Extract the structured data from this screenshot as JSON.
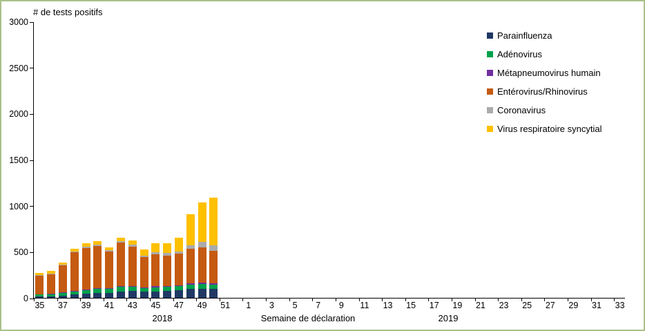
{
  "frame": {
    "border_color": "#a9c189",
    "background": "#ffffff"
  },
  "chart_data": {
    "type": "bar",
    "stacked": true,
    "title": "# de tests positifs",
    "xlabel": "Semaine de déclaration",
    "ylabel": "",
    "ylim": [
      0,
      3000
    ],
    "ytick_step": 500,
    "grid": false,
    "legend_position": "top-right",
    "year_groups": [
      {
        "label": "2018",
        "week_start": 35,
        "week_end": 52
      },
      {
        "label": "2019",
        "week_start": 1,
        "week_end": 33
      }
    ],
    "categories": [
      35,
      36,
      37,
      38,
      39,
      40,
      41,
      42,
      43,
      44,
      45,
      46,
      47,
      48,
      49,
      50,
      51,
      52,
      1,
      2,
      3,
      4,
      5,
      6,
      7,
      8,
      9,
      10,
      11,
      12,
      13,
      14,
      15,
      16,
      17,
      18,
      19,
      20,
      21,
      22,
      23,
      24,
      25,
      26,
      27,
      28,
      29,
      30,
      31,
      32,
      33
    ],
    "x_tick_label_interval": 2,
    "series": [
      {
        "name": "Parainfluenza",
        "color": "#1f3864",
        "values": [
          15,
          18,
          25,
          35,
          45,
          55,
          55,
          70,
          75,
          65,
          70,
          75,
          80,
          95,
          100,
          95,
          0,
          0,
          0,
          0,
          0,
          0,
          0,
          0,
          0,
          0,
          0,
          0,
          0,
          0,
          0,
          0,
          0,
          0,
          0,
          0,
          0,
          0,
          0,
          0,
          0,
          0,
          0,
          0,
          0,
          0,
          0,
          0,
          0,
          0,
          0
        ]
      },
      {
        "name": "Adénovirus",
        "color": "#00a14b",
        "values": [
          20,
          22,
          30,
          35,
          40,
          45,
          40,
          50,
          45,
          40,
          45,
          45,
          45,
          50,
          50,
          45,
          0,
          0,
          0,
          0,
          0,
          0,
          0,
          0,
          0,
          0,
          0,
          0,
          0,
          0,
          0,
          0,
          0,
          0,
          0,
          0,
          0,
          0,
          0,
          0,
          0,
          0,
          0,
          0,
          0,
          0,
          0,
          0,
          0,
          0,
          0
        ]
      },
      {
        "name": "Métapneumovirus humain",
        "color": "#7030a0",
        "values": [
          3,
          3,
          4,
          5,
          6,
          6,
          7,
          8,
          8,
          8,
          10,
          10,
          12,
          15,
          18,
          20,
          0,
          0,
          0,
          0,
          0,
          0,
          0,
          0,
          0,
          0,
          0,
          0,
          0,
          0,
          0,
          0,
          0,
          0,
          0,
          0,
          0,
          0,
          0,
          0,
          0,
          0,
          0,
          0,
          0,
          0,
          0,
          0,
          0,
          0,
          0
        ]
      },
      {
        "name": "Entérovirus/Rhinovirus",
        "color": "#c55a11",
        "values": [
          200,
          215,
          290,
          420,
          450,
          460,
          400,
          470,
          430,
          330,
          350,
          330,
          340,
          370,
          380,
          350,
          0,
          0,
          0,
          0,
          0,
          0,
          0,
          0,
          0,
          0,
          0,
          0,
          0,
          0,
          0,
          0,
          0,
          0,
          0,
          0,
          0,
          0,
          0,
          0,
          0,
          0,
          0,
          0,
          0,
          0,
          0,
          0,
          0,
          0,
          0
        ]
      },
      {
        "name": "Coronavirus",
        "color": "#ababab",
        "values": [
          7,
          7,
          8,
          10,
          12,
          14,
          13,
          15,
          17,
          17,
          20,
          25,
          28,
          40,
          57,
          60,
          0,
          0,
          0,
          0,
          0,
          0,
          0,
          0,
          0,
          0,
          0,
          0,
          0,
          0,
          0,
          0,
          0,
          0,
          0,
          0,
          0,
          0,
          0,
          0,
          0,
          0,
          0,
          0,
          0,
          0,
          0,
          0,
          0,
          0,
          0
        ]
      },
      {
        "name": "Virus respiratoire syncytial",
        "color": "#ffc000",
        "values": [
          25,
          30,
          28,
          25,
          37,
          35,
          35,
          42,
          45,
          65,
          100,
          105,
          145,
          340,
          430,
          520,
          0,
          0,
          0,
          0,
          0,
          0,
          0,
          0,
          0,
          0,
          0,
          0,
          0,
          0,
          0,
          0,
          0,
          0,
          0,
          0,
          0,
          0,
          0,
          0,
          0,
          0,
          0,
          0,
          0,
          0,
          0,
          0,
          0,
          0,
          0
        ]
      }
    ]
  }
}
